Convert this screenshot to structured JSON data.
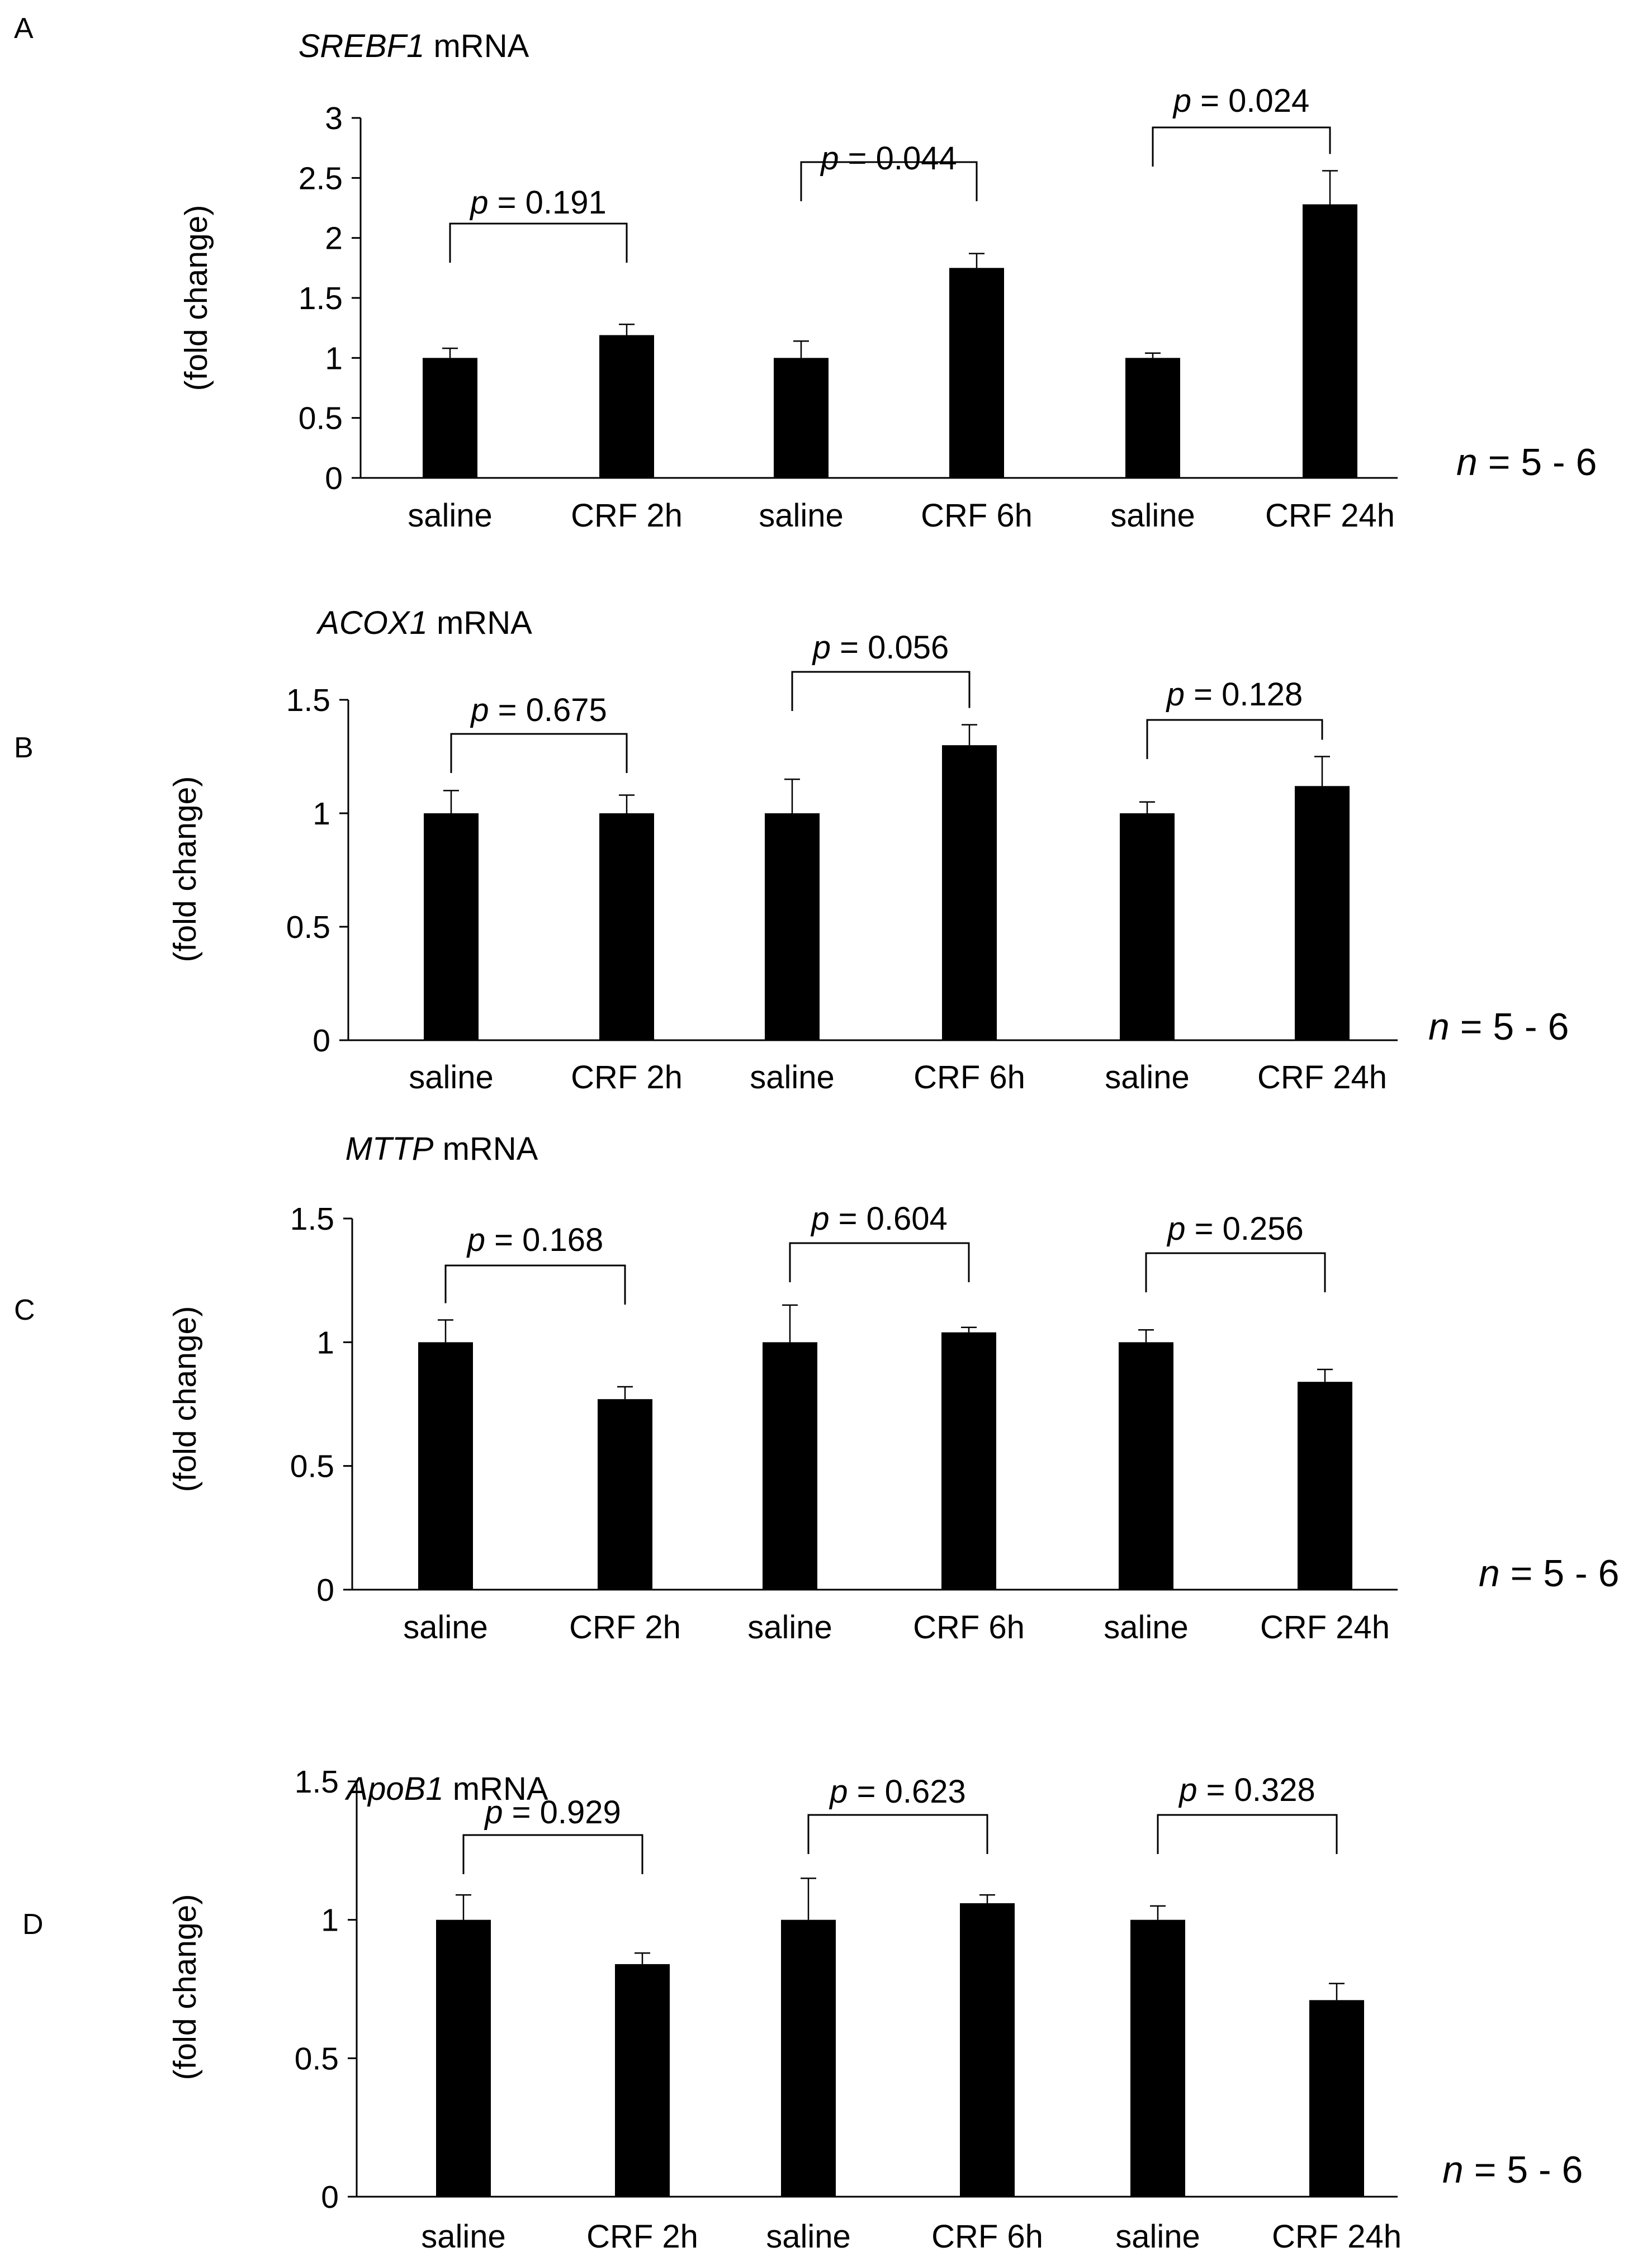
{
  "figure": {
    "background": "#ffffff",
    "bar_color": "#000000"
  },
  "chart_data": [
    {
      "panel": "A",
      "type": "bar",
      "title_italic": "SREBF1",
      "title_rest": " mRNA",
      "ylabel": "(fold change)",
      "xlabel": "",
      "ylim": [
        0,
        3
      ],
      "ticks": [
        "0",
        "0.5",
        "1",
        "1.5",
        "2",
        "2.5",
        "3"
      ],
      "tick_values": [
        0,
        0.5,
        1,
        1.5,
        2,
        2.5,
        3
      ],
      "categories": [
        "saline",
        "CRF 2h",
        "saline",
        "CRF 6h",
        "saline",
        "CRF 24h"
      ],
      "values": [
        1.0,
        1.19,
        1.0,
        1.75,
        1.0,
        2.28
      ],
      "errors": [
        0.08,
        0.09,
        0.14,
        0.12,
        0.04,
        0.28
      ],
      "comparisons": [
        {
          "p_label": "p",
          "p_value": " = 0.191",
          "pair": [
            0,
            1
          ]
        },
        {
          "p_label": "p",
          "p_value": " = 0.044",
          "pair": [
            2,
            3
          ]
        },
        {
          "p_label": "p",
          "p_value": " = 0.024",
          "pair": [
            4,
            5
          ]
        }
      ],
      "n_label": "n",
      "n_value": " = 5 - 6"
    },
    {
      "panel": "B",
      "type": "bar",
      "title_italic": "ACOX1",
      "title_rest": " mRNA",
      "ylabel": "(fold change)",
      "xlabel": "",
      "ylim": [
        0,
        1.5
      ],
      "ticks": [
        "0",
        "0.5",
        "1",
        "1.5"
      ],
      "tick_values": [
        0,
        0.5,
        1,
        1.5
      ],
      "categories": [
        "saline",
        "CRF 2h",
        "saline",
        "CRF 6h",
        "saline",
        "CRF 24h"
      ],
      "values": [
        1.0,
        1.0,
        1.0,
        1.3,
        1.0,
        1.12
      ],
      "errors": [
        0.1,
        0.08,
        0.15,
        0.09,
        0.05,
        0.13
      ],
      "comparisons": [
        {
          "p_label": "p",
          "p_value": " = 0.675",
          "pair": [
            0,
            1
          ]
        },
        {
          "p_label": "p",
          "p_value": " = 0.056",
          "pair": [
            2,
            3
          ]
        },
        {
          "p_label": "p",
          "p_value": " = 0.128",
          "pair": [
            4,
            5
          ]
        }
      ],
      "n_label": "n",
      "n_value": " = 5 - 6"
    },
    {
      "panel": "C",
      "type": "bar",
      "title_italic": "MTTP",
      "title_rest": " mRNA",
      "ylabel": "(fold change)",
      "xlabel": "",
      "ylim": [
        0,
        1.5
      ],
      "ticks": [
        "0",
        "0.5",
        "1",
        "1.5"
      ],
      "tick_values": [
        0,
        0.5,
        1,
        1.5
      ],
      "categories": [
        "saline",
        "CRF 2h",
        "saline",
        "CRF 6h",
        "saline",
        "CRF 24h"
      ],
      "values": [
        1.0,
        0.77,
        1.0,
        1.04,
        1.0,
        0.84
      ],
      "errors": [
        0.09,
        0.05,
        0.15,
        0.02,
        0.05,
        0.05
      ],
      "comparisons": [
        {
          "p_label": "p",
          "p_value": " = 0.168",
          "pair": [
            0,
            1
          ]
        },
        {
          "p_label": "p",
          "p_value": " = 0.604",
          "pair": [
            2,
            3
          ]
        },
        {
          "p_label": "p",
          "p_value": " = 0.256",
          "pair": [
            4,
            5
          ]
        }
      ],
      "n_label": "n",
      "n_value": " = 5 - 6"
    },
    {
      "panel": "D",
      "type": "bar",
      "title_italic": "ApoB1",
      "title_rest": " mRNA",
      "ylabel": "(fold change)",
      "xlabel": "",
      "ylim": [
        0,
        1.5
      ],
      "ticks": [
        "0",
        "0.5",
        "1",
        "1.5"
      ],
      "tick_values": [
        0,
        0.5,
        1,
        1.5
      ],
      "categories": [
        "saline",
        "CRF 2h",
        "saline",
        "CRF 6h",
        "saline",
        "CRF 24h"
      ],
      "values": [
        1.0,
        0.84,
        1.0,
        1.06,
        1.0,
        0.71
      ],
      "errors": [
        0.09,
        0.04,
        0.15,
        0.03,
        0.05,
        0.06
      ],
      "comparisons": [
        {
          "p_label": "p",
          "p_value": " = 0.929",
          "pair": [
            0,
            1
          ]
        },
        {
          "p_label": "p",
          "p_value": " = 0.623",
          "pair": [
            2,
            3
          ]
        },
        {
          "p_label": "p",
          "p_value": " = 0.328",
          "pair": [
            4,
            5
          ]
        }
      ],
      "n_label": "n",
      "n_value": " = 5 - 6"
    }
  ]
}
